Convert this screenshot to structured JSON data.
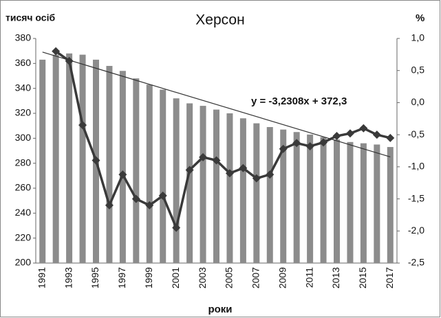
{
  "chart_data": {
    "type": "bar-line",
    "title": "Херсон",
    "y_label": "тисяч осіб",
    "y2_label": "%",
    "x_label": "роки",
    "categories": [
      "1991",
      null,
      "1993",
      null,
      "1995",
      null,
      "1997",
      null,
      "1999",
      null,
      "2001",
      null,
      "2003",
      null,
      "2005",
      null,
      "2007",
      null,
      "2009",
      null,
      "2011",
      null,
      "2013",
      null,
      "2015",
      null,
      "2017"
    ],
    "series": [
      {
        "type": "bar",
        "color": "#8c8c8c",
        "axis": "y",
        "values": [
          363,
          367,
          368,
          367,
          363,
          358,
          354,
          348,
          343,
          339,
          332,
          328,
          326,
          323,
          320,
          316,
          312,
          309,
          307,
          305,
          303,
          301,
          299,
          297,
          296,
          295,
          293
        ]
      },
      {
        "type": "line",
        "color": "#3a3a3a",
        "axis": "y2",
        "values": [
          null,
          0.8,
          0.65,
          -0.35,
          -0.9,
          -1.6,
          -1.12,
          -1.5,
          -1.6,
          -1.45,
          -1.95,
          -1.05,
          -0.85,
          -0.9,
          -1.1,
          -1.02,
          -1.18,
          -1.12,
          -0.72,
          -0.63,
          -0.68,
          -0.62,
          -0.52,
          -0.48,
          -0.4,
          -0.5,
          -0.55
        ]
      }
    ],
    "trendline": {
      "slope": -3.2308,
      "intercept": 372.3,
      "label": "y = -3,2308x + 372,3",
      "color": "#333333"
    },
    "ylim": [
      200,
      380
    ],
    "yticks": [
      200,
      220,
      240,
      260,
      280,
      300,
      320,
      340,
      360,
      380
    ],
    "y2lim": [
      -2.5,
      1.0
    ],
    "y2ticks": [
      {
        "value": -2.5,
        "label": "-2,5"
      },
      {
        "value": -2.0,
        "label": "-2,0"
      },
      {
        "value": -1.5,
        "label": "-1,5"
      },
      {
        "value": -1.0,
        "label": "-1,0"
      },
      {
        "value": -0.5,
        "label": "-0,5"
      },
      {
        "value": 0.0,
        "label": "0,0"
      },
      {
        "value": 0.5,
        "label": "0,5"
      },
      {
        "value": 1.0,
        "label": "1,0"
      }
    ]
  }
}
